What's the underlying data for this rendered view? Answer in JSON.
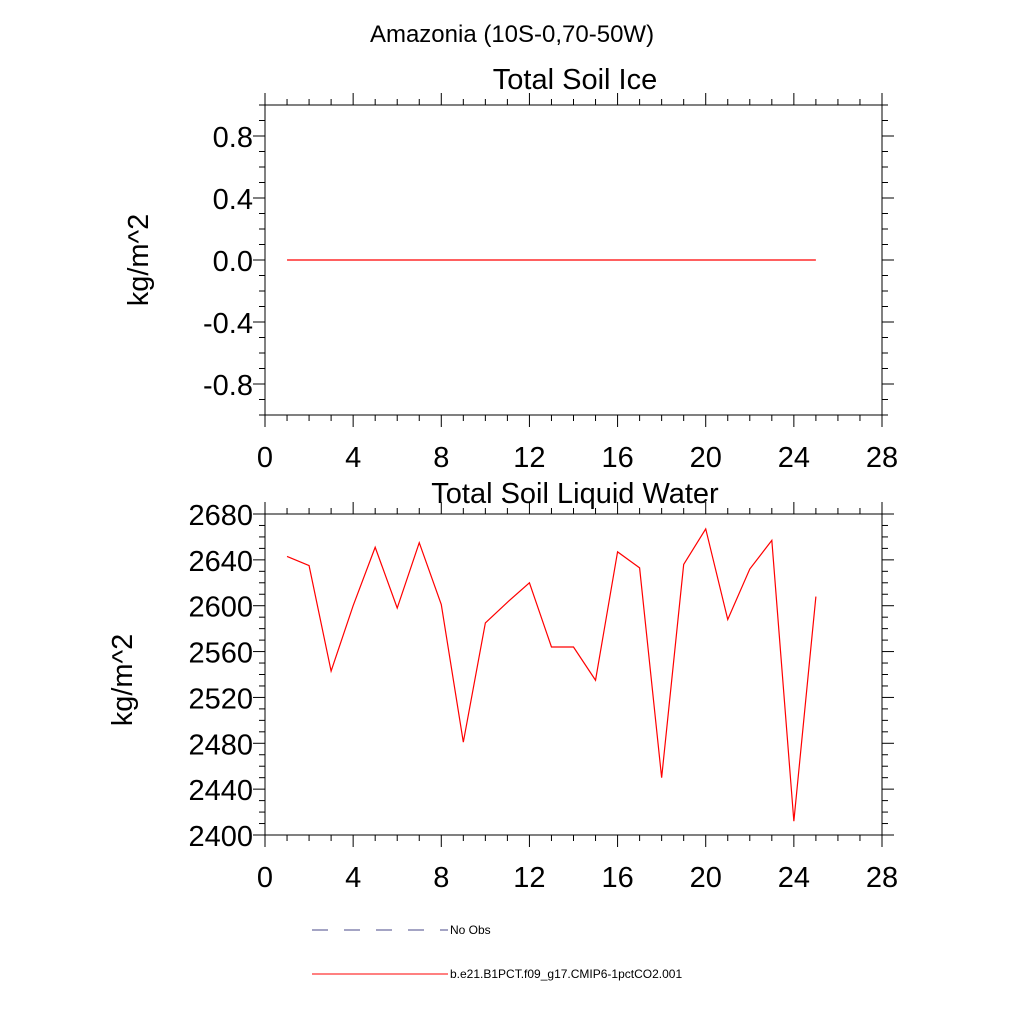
{
  "suptitle": "Amazonia (10S-0,70-50W)",
  "chart_data": [
    {
      "type": "line",
      "title": "Total Soil Ice",
      "xlabel": "",
      "ylabel": "kg/m^2",
      "xlim": [
        0,
        28
      ],
      "ylim": [
        -1,
        1
      ],
      "xticks": [
        0,
        4,
        8,
        12,
        16,
        20,
        24,
        28
      ],
      "yticks": [
        -0.8,
        -0.4,
        0.0,
        0.4,
        0.8
      ],
      "ytick_labels": [
        "-0.8",
        "-0.4",
        "0.0",
        "0.4",
        "0.8"
      ],
      "grid": false,
      "series": [
        {
          "name": "b.e21.B1PCT.f09_g17.CMIP6-1pctCO2.001",
          "color": "#ff0000",
          "x": [
            1,
            2,
            3,
            4,
            5,
            6,
            7,
            8,
            9,
            10,
            11,
            12,
            13,
            14,
            15,
            16,
            17,
            18,
            19,
            20,
            21,
            22,
            23,
            24,
            25
          ],
          "values": [
            0,
            0,
            0,
            0,
            0,
            0,
            0,
            0,
            0,
            0,
            0,
            0,
            0,
            0,
            0,
            0,
            0,
            0,
            0,
            0,
            0,
            0,
            0,
            0,
            0
          ]
        }
      ]
    },
    {
      "type": "line",
      "title": "Total Soil Liquid Water",
      "xlabel": "",
      "ylabel": "kg/m^2",
      "xlim": [
        0,
        28
      ],
      "ylim": [
        2400,
        2680
      ],
      "xticks": [
        0,
        4,
        8,
        12,
        16,
        20,
        24,
        28
      ],
      "yticks": [
        2400,
        2440,
        2480,
        2520,
        2560,
        2600,
        2640,
        2680
      ],
      "ytick_labels": [
        "2400",
        "2440",
        "2480",
        "2520",
        "2560",
        "2600",
        "2640",
        "2680"
      ],
      "grid": false,
      "series": [
        {
          "name": "b.e21.B1PCT.f09_g17.CMIP6-1pctCO2.001",
          "color": "#ff0000",
          "x": [
            1,
            2,
            3,
            4,
            5,
            6,
            7,
            8,
            9,
            10,
            11,
            12,
            13,
            14,
            15,
            16,
            17,
            18,
            19,
            20,
            21,
            22,
            23,
            24,
            25
          ],
          "values": [
            2643,
            2635,
            2543,
            2600,
            2651,
            2598,
            2655,
            2601,
            2481,
            2585,
            2603,
            2620,
            2564,
            2564,
            2535,
            2647,
            2633,
            2450,
            2636,
            2667,
            2588,
            2632,
            2657,
            2412,
            2608
          ]
        }
      ]
    }
  ],
  "legend": [
    {
      "label": "No Obs",
      "color": "#4a4a8a",
      "style": "dashed"
    },
    {
      "label": "b.e21.B1PCT.f09_g17.CMIP6-1pctCO2.001",
      "color": "#ff0000",
      "style": "solid"
    }
  ]
}
